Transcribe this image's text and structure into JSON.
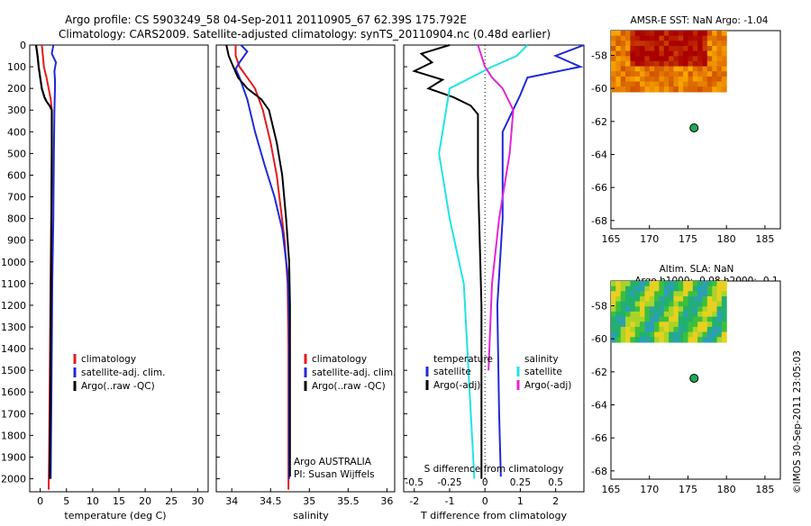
{
  "title": {
    "line1": "Argo profile: CS 5903249_58 04-Sep-2011 20110905_67 62.39S 175.792E",
    "line2": "Climatology: CARS2009. Satellite-adjusted climatology: synTS_20110904.nc (0.48d earlier)"
  },
  "colors": {
    "climatology": "#e41a1c",
    "satellite": "#1f2ad8",
    "argo": "#000000",
    "sal_satellite": "#22e3e3",
    "sal_argo": "#e027d4",
    "marker": "#1faa55"
  },
  "depth_ticks": [
    "0",
    "100",
    "200",
    "300",
    "400",
    "500",
    "600",
    "700",
    "800",
    "900",
    "1000",
    "1100",
    "1200",
    "1300",
    "1400",
    "1500",
    "1600",
    "1700",
    "1800",
    "1900",
    "2000"
  ],
  "chart_data": [
    {
      "type": "line",
      "id": "temperature",
      "xlabel": "temperature (deg C)",
      "xticks": [
        "0",
        "5",
        "10",
        "15",
        "20",
        "25",
        "30"
      ],
      "ylim": [
        0,
        2060
      ],
      "xlim": [
        -2,
        32
      ],
      "legend": {
        "position": "lower-center",
        "entries": [
          "climatology",
          "satellite-adj. clim.",
          "Argo(..raw -QC)"
        ]
      },
      "series": [
        {
          "name": "climatology",
          "x": [
            0.3,
            0.5,
            0.7,
            1.2,
            1.6,
            2.0,
            2.2,
            2.2,
            2.1,
            2.0,
            1.9,
            1.8,
            1.7,
            1.6
          ],
          "y": [
            0,
            50,
            100,
            150,
            200,
            250,
            300,
            500,
            800,
            1000,
            1300,
            1600,
            1900,
            2050
          ]
        },
        {
          "name": "satellite-adj. clim.",
          "x": [
            2.5,
            2.2,
            3.0,
            2.7,
            2.8,
            2.8,
            2.7,
            2.6,
            2.5,
            2.3,
            2.2,
            2.1,
            2.0
          ],
          "y": [
            0,
            40,
            80,
            120,
            160,
            200,
            300,
            500,
            800,
            1100,
            1400,
            1700,
            2000
          ]
        },
        {
          "name": "Argo(..raw -QC)",
          "x": [
            -0.8,
            -0.5,
            -0.3,
            0.0,
            0.3,
            0.8,
            1.2,
            1.8,
            2.2,
            2.2,
            2.1,
            2.0,
            1.9,
            1.8
          ],
          "y": [
            0,
            50,
            100,
            150,
            200,
            240,
            260,
            280,
            300,
            500,
            900,
            1300,
            1700,
            2000
          ]
        }
      ]
    },
    {
      "type": "line",
      "id": "salinity",
      "xlabel": "salinity",
      "xticks": [
        "34",
        "34.5",
        "35",
        "35.5",
        "36"
      ],
      "xlim": [
        33.8,
        36.1
      ],
      "ylim": [
        0,
        2060
      ],
      "legend": {
        "position": "lower-right",
        "entries": [
          "climatology",
          "satellite-adj. clim.",
          "Argo(..raw -QC)"
        ]
      },
      "annotation": [
        "Argo AUSTRALIA",
        "PI: Susan Wijffels"
      ],
      "series": [
        {
          "name": "climatology",
          "x": [
            34.05,
            34.05,
            34.1,
            34.2,
            34.3,
            34.4,
            34.5,
            34.58,
            34.63,
            34.68,
            34.72,
            34.73,
            34.73
          ],
          "y": [
            0,
            50,
            100,
            150,
            200,
            300,
            450,
            600,
            750,
            900,
            1100,
            1400,
            2050
          ]
        },
        {
          "name": "satellite-adj. clim.",
          "x": [
            34.12,
            34.2,
            34.1,
            34.05,
            34.1,
            34.2,
            34.3,
            34.42,
            34.55,
            34.65,
            34.72,
            34.74,
            34.74
          ],
          "y": [
            0,
            30,
            80,
            110,
            150,
            250,
            400,
            550,
            700,
            850,
            1050,
            1300,
            2000
          ]
        },
        {
          "name": "Argo(..raw -QC)",
          "x": [
            33.93,
            33.96,
            34.02,
            34.08,
            34.2,
            34.38,
            34.48,
            34.58,
            34.65,
            34.7,
            34.74,
            34.75,
            34.75
          ],
          "y": [
            0,
            50,
            100,
            150,
            200,
            250,
            300,
            450,
            600,
            800,
            1000,
            1200,
            1990
          ]
        }
      ]
    },
    {
      "type": "line",
      "id": "differences",
      "xlabel": "T difference from climatology",
      "xlabel_top": "S difference from climatology",
      "xticks": [
        "-2",
        "-1",
        "0",
        "1",
        "2"
      ],
      "xticks_top": [
        "-0.5",
        "-0.25",
        "0",
        "0.25",
        "0.5"
      ],
      "xlim": [
        -2.3,
        2.8
      ],
      "ylim": [
        0,
        2060
      ],
      "legend": {
        "position": "lower-center",
        "group_titles": [
          "temperature",
          "salinity"
        ],
        "entries": [
          "satellite",
          "Argo(-adj)",
          "satellite",
          "Argo(-adj)"
        ]
      },
      "series": [
        {
          "name": "temperature satellite",
          "x": [
            2.8,
            2.0,
            2.7,
            1.2,
            1.0,
            0.5,
            0.5,
            0.35,
            0.4,
            0.45
          ],
          "y": [
            0,
            50,
            100,
            150,
            230,
            400,
            800,
            1200,
            1700,
            1990
          ]
        },
        {
          "name": "temperature Argo(-adj)",
          "x": [
            -1.0,
            -1.8,
            -1.5,
            -2.0,
            -1.2,
            -1.6,
            -0.9,
            -0.4,
            -0.2,
            -0.2,
            -0.1,
            -0.1
          ],
          "y": [
            0,
            40,
            80,
            120,
            160,
            200,
            240,
            280,
            320,
            600,
            1200,
            2000
          ]
        },
        {
          "name": "salinity satellite",
          "x": [
            1.2,
            0.9,
            0.2,
            -1.0,
            -1.3,
            -1.0,
            -0.6,
            -0.5,
            -0.3
          ],
          "y": [
            0,
            50,
            100,
            200,
            500,
            800,
            1100,
            1400,
            2000
          ]
        },
        {
          "name": "salinity Argo(-adj)",
          "x": [
            -0.2,
            0.0,
            0.2,
            0.5,
            0.8,
            0.7,
            0.4,
            0.2,
            0.1
          ],
          "y": [
            0,
            100,
            150,
            200,
            300,
            500,
            800,
            1100,
            1500
          ]
        }
      ]
    },
    {
      "type": "heatmap",
      "id": "sst-map",
      "title": "AMSR-E SST: NaN Argo: -1.04",
      "xticks": [
        "165",
        "170",
        "175",
        "180",
        "185"
      ],
      "yticks": [
        "-58",
        "-60",
        "-62",
        "-64",
        "-66",
        "-68"
      ],
      "xlim": [
        165,
        187
      ],
      "ylim": [
        -68.5,
        -56.5
      ],
      "field_extent": {
        "lon": [
          165,
          180
        ],
        "lat": [
          -60.2,
          -56.5
        ]
      },
      "float_position": {
        "lon": 175.792,
        "lat": -62.39
      }
    },
    {
      "type": "heatmap",
      "id": "sla-map",
      "title": "Altim. SLA: NaN",
      "subtitle": "Argo h1000: -0.08 h2000: -0.1",
      "xticks": [
        "165",
        "170",
        "175",
        "180",
        "185"
      ],
      "yticks": [
        "-58",
        "-60",
        "-62",
        "-64",
        "-66",
        "-68"
      ],
      "xlim": [
        165,
        187
      ],
      "ylim": [
        -68.5,
        -56.5
      ],
      "field_extent": {
        "lon": [
          165,
          180
        ],
        "lat": [
          -60.2,
          -56.5
        ]
      },
      "float_position": {
        "lon": 175.792,
        "lat": -62.39
      }
    }
  ],
  "credit": "©IMOS 30-Sep-2011 23:05:03"
}
